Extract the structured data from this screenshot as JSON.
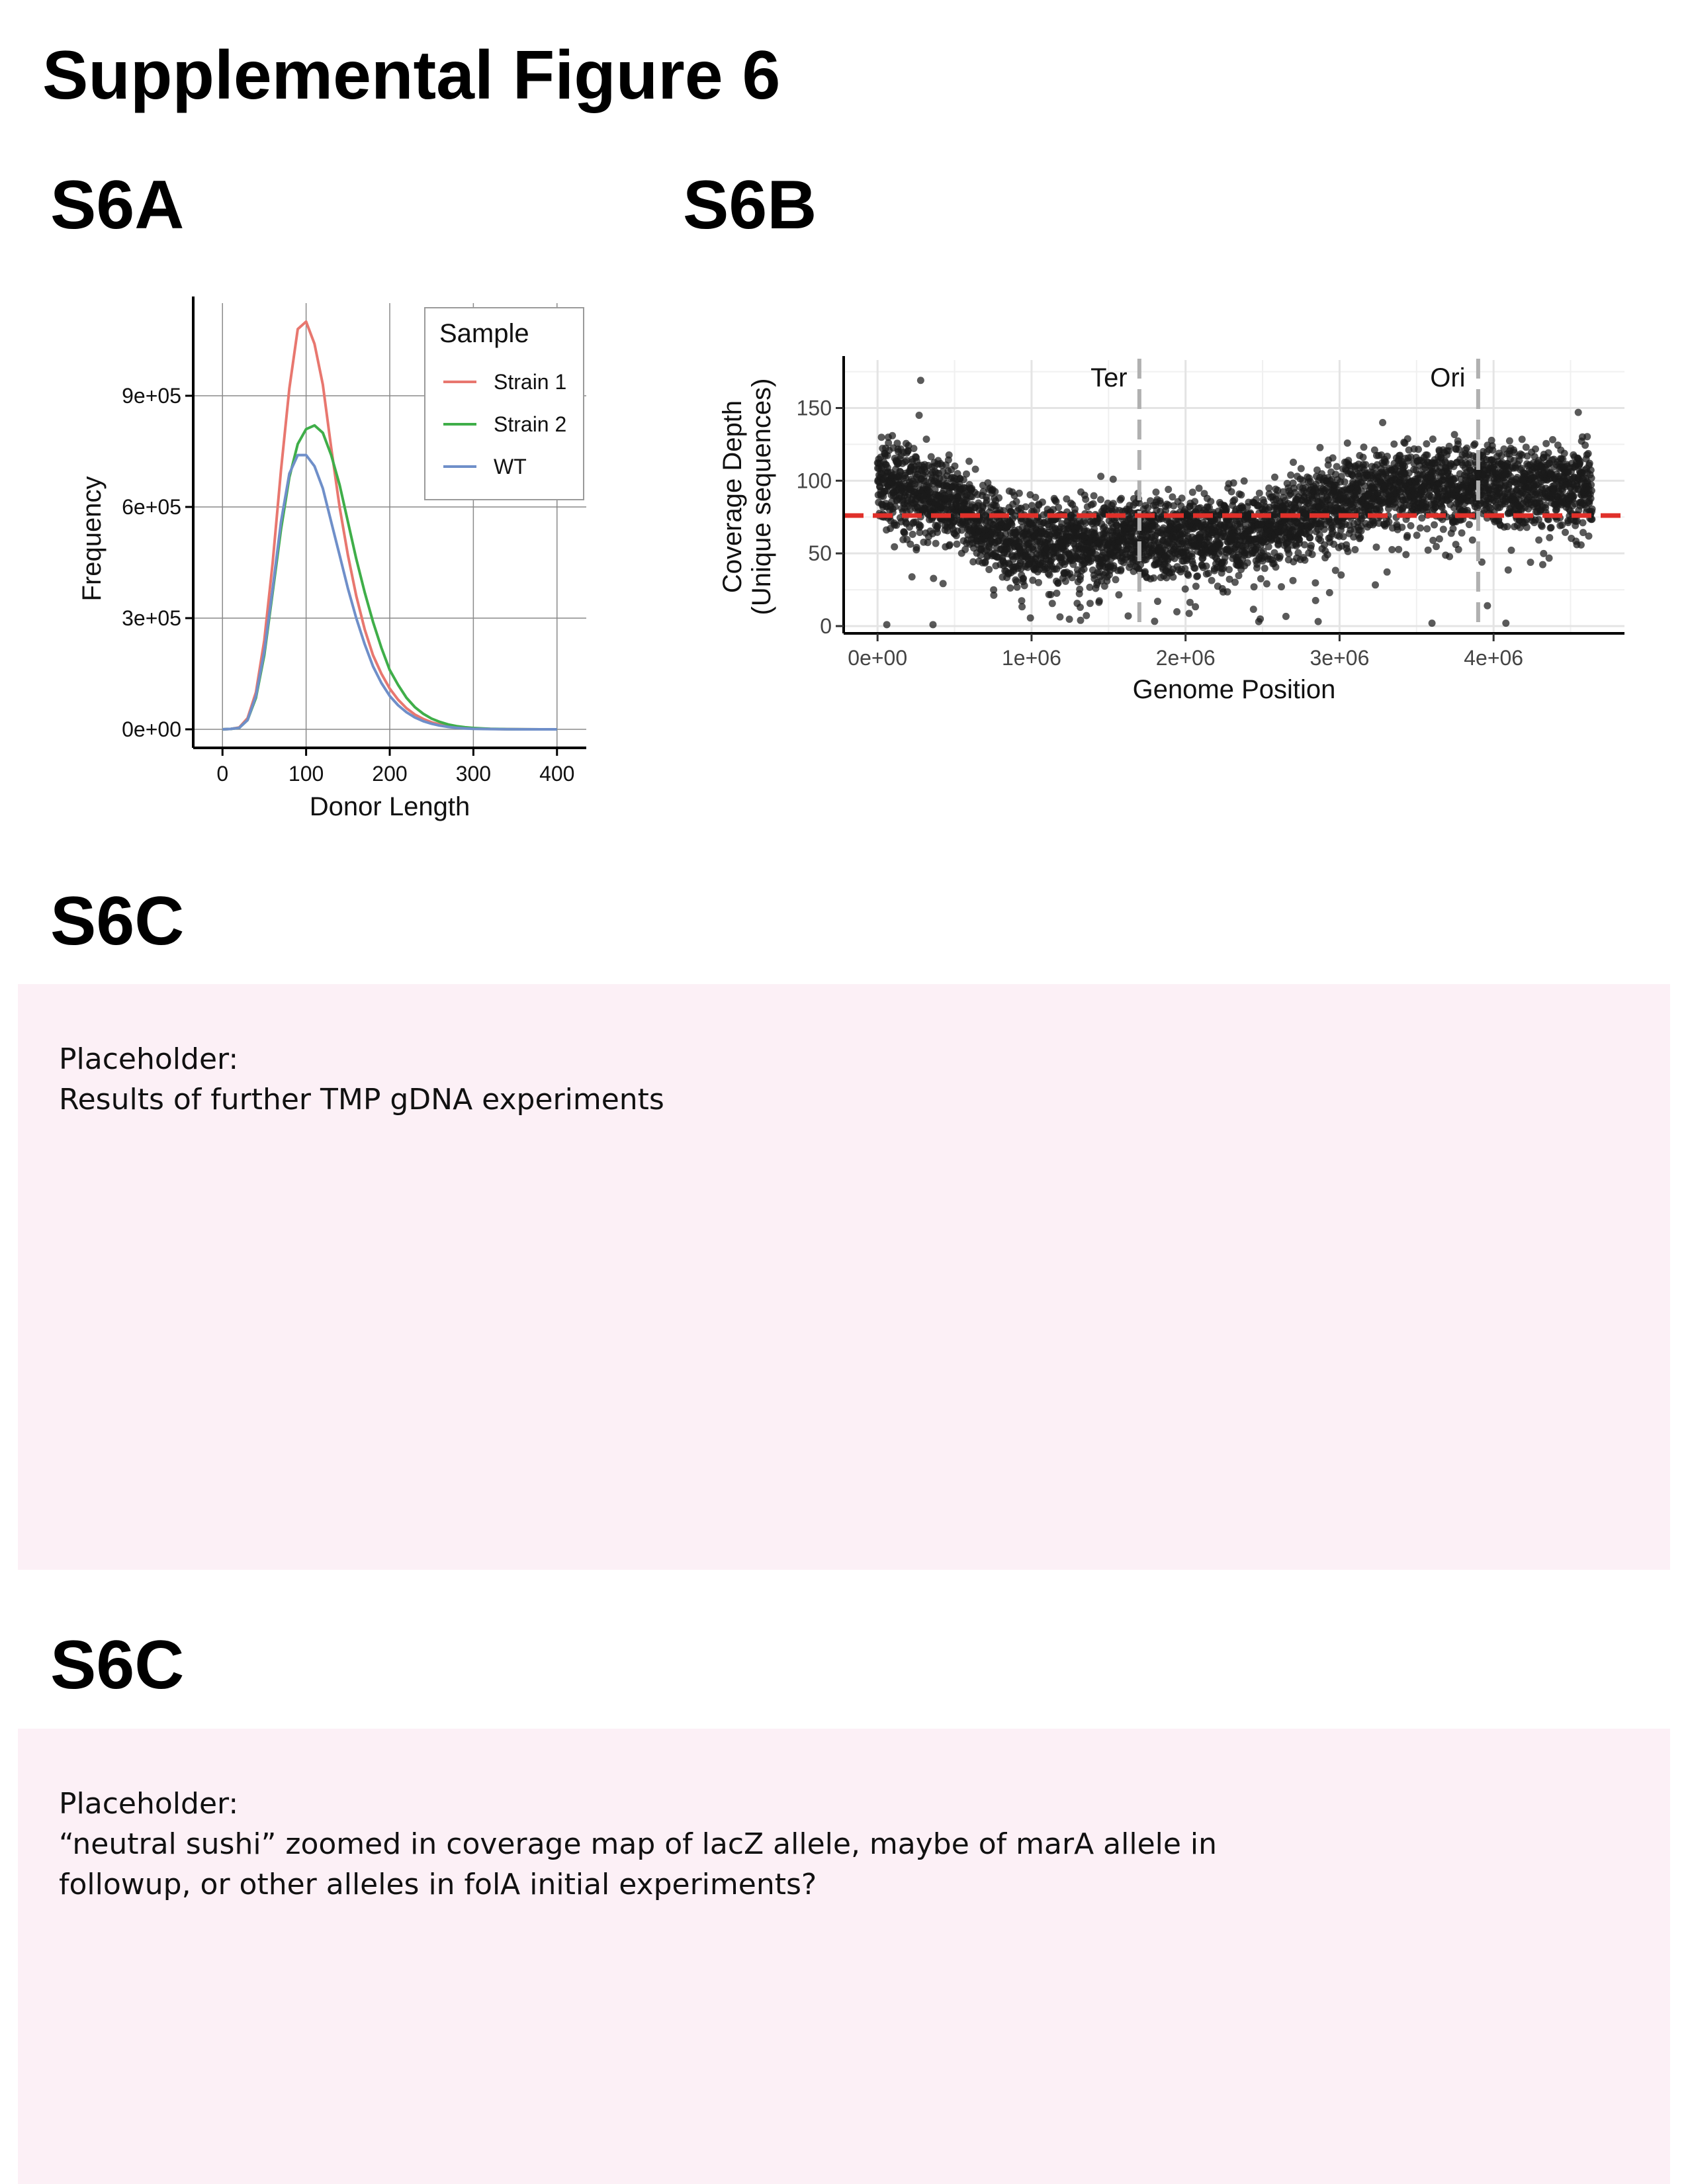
{
  "figure": {
    "title": "Supplemental Figure 6"
  },
  "panels": {
    "a": {
      "label": "S6A"
    },
    "b": {
      "label": "S6B"
    },
    "c1": {
      "label": "S6C",
      "placeholder_lines": [
        "Placeholder:",
        "Results of further TMP gDNA experiments"
      ]
    },
    "c2": {
      "label": "S6C",
      "placeholder_lines": [
        "Placeholder:",
        "“neutral sushi” zoomed in coverage map of lacZ allele, maybe of marA allele in",
        "followup, or other alleles in folA initial experiments?"
      ]
    }
  },
  "chart_data": [
    {
      "type": "line",
      "xlabel": "Donor Length",
      "ylabel": "Frequency",
      "xlim": [
        -35,
        435
      ],
      "ylim": [
        -50000,
        1150000
      ],
      "x_ticks": [
        0,
        100,
        200,
        300,
        400
      ],
      "x_tick_labels": [
        "0",
        "100",
        "200",
        "300",
        "400"
      ],
      "y_ticks": [
        0,
        300000,
        600000,
        900000
      ],
      "y_tick_labels": [
        "0e+00",
        "3e+05",
        "6e+05",
        "9e+05"
      ],
      "grid": true,
      "legend": {
        "title": "Sample",
        "position": "top-right"
      },
      "x": [
        0,
        10,
        20,
        30,
        40,
        50,
        60,
        70,
        80,
        90,
        100,
        110,
        120,
        130,
        140,
        150,
        160,
        170,
        180,
        190,
        200,
        210,
        220,
        230,
        240,
        250,
        260,
        270,
        280,
        290,
        300,
        320,
        340,
        360,
        380,
        400
      ],
      "series": [
        {
          "name": "Strain 1",
          "color": "#e8776f",
          "values": [
            0,
            1000,
            5000,
            30000,
            100000,
            240000,
            450000,
            700000,
            920000,
            1080000,
            1100000,
            1040000,
            930000,
            760000,
            600000,
            470000,
            360000,
            270000,
            200000,
            150000,
            110000,
            80000,
            57000,
            40000,
            28000,
            19000,
            13000,
            8500,
            5500,
            3500,
            2200,
            1000,
            400,
            150,
            50,
            0
          ]
        },
        {
          "name": "Strain 2",
          "color": "#3fae49",
          "values": [
            0,
            1000,
            4000,
            25000,
            85000,
            200000,
            370000,
            540000,
            680000,
            770000,
            810000,
            820000,
            800000,
            740000,
            660000,
            560000,
            460000,
            370000,
            290000,
            220000,
            160000,
            120000,
            85000,
            60000,
            42000,
            29000,
            20000,
            13000,
            8500,
            5500,
            3500,
            1500,
            600,
            200,
            80,
            0
          ]
        },
        {
          "name": "WT",
          "color": "#6f8fc9",
          "values": [
            0,
            1000,
            4000,
            25000,
            90000,
            210000,
            380000,
            560000,
            690000,
            740000,
            740000,
            710000,
            650000,
            560000,
            470000,
            380000,
            300000,
            230000,
            170000,
            125000,
            90000,
            65000,
            46000,
            32000,
            22000,
            15000,
            10000,
            6500,
            4000,
            2500,
            1500,
            700,
            250,
            80,
            30,
            0
          ]
        }
      ]
    },
    {
      "type": "scatter",
      "xlabel": "Genome Position",
      "ylabel": "Coverage Depth\n(Unique sequences)",
      "xlim": [
        -220000,
        4850000
      ],
      "ylim": [
        -5,
        183
      ],
      "x_ticks": [
        0,
        1000000,
        2000000,
        3000000,
        4000000
      ],
      "x_tick_labels": [
        "0e+00",
        "1e+06",
        "2e+06",
        "3e+06",
        "4e+06"
      ],
      "y_ticks": [
        0,
        50,
        100,
        150
      ],
      "y_tick_labels": [
        "0",
        "50",
        "100",
        "150"
      ],
      "grid": true,
      "point_color": "#1a1a1a",
      "mean_line": {
        "y": 76,
        "color": "#e0302a"
      },
      "annotations": [
        {
          "label": "Ter",
          "x": 1700000,
          "color": "#b0b0b0"
        },
        {
          "label": "Ori",
          "x": 3900000,
          "color": "#b0b0b0"
        }
      ],
      "trend": {
        "x": [
          0,
          200000,
          400000,
          600000,
          800000,
          1000000,
          1300000,
          1600000,
          1900000,
          2200000,
          2500000,
          2800000,
          3100000,
          3400000,
          3700000,
          4000000,
          4300000,
          4600000
        ],
        "y": [
          98,
          96,
          88,
          75,
          62,
          58,
          58,
          60,
          62,
          63,
          66,
          78,
          90,
          97,
          98,
          97,
          96,
          96
        ]
      },
      "num_points": 4200,
      "point_x_range": [
        0,
        4640000
      ],
      "spread": 14,
      "outliers": [
        {
          "x": 280000,
          "y": 169
        },
        {
          "x": 270000,
          "y": 145
        },
        {
          "x": 60000,
          "y": 1
        },
        {
          "x": 360000,
          "y": 1
        },
        {
          "x": 3600000,
          "y": 2
        },
        {
          "x": 4080000,
          "y": 2
        },
        {
          "x": 3960000,
          "y": 14
        },
        {
          "x": 4550000,
          "y": 147
        },
        {
          "x": 3280000,
          "y": 140
        },
        {
          "x": 1450000,
          "y": 103
        },
        {
          "x": 1530000,
          "y": 101
        }
      ]
    }
  ]
}
